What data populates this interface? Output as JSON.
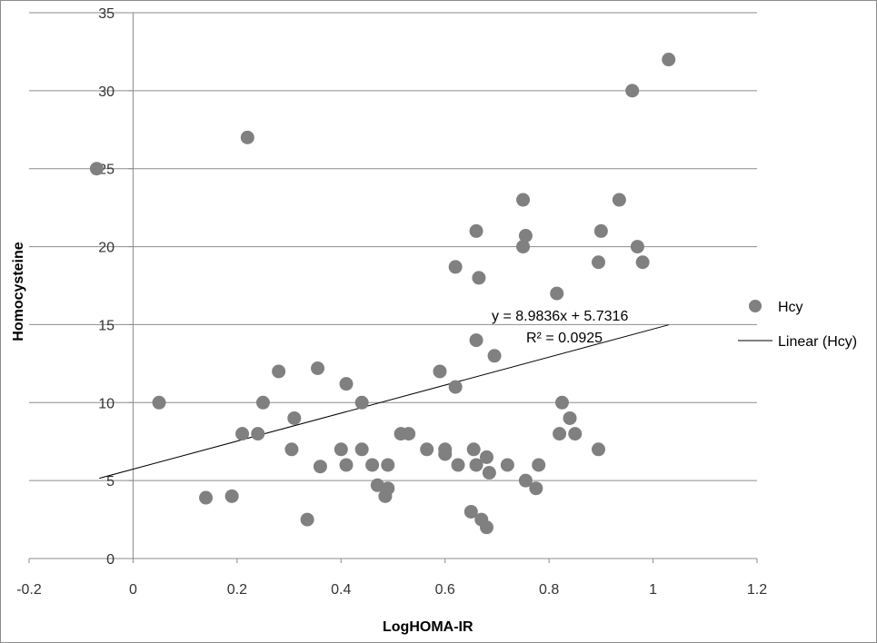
{
  "chart_data": {
    "type": "scatter",
    "xlabel": "LogHOMA-IR",
    "ylabel": "Homocysteine",
    "xlim": [
      -0.2,
      1.2
    ],
    "ylim": [
      0,
      35
    ],
    "xticks": [
      -0.2,
      0,
      0.2,
      0.4,
      0.6,
      0.8,
      1,
      1.2
    ],
    "xtick_labels": [
      "-0.2",
      "0",
      "0.2",
      "0.4",
      "0.6",
      "0.8",
      "1",
      "1.2"
    ],
    "yticks": [
      0,
      5,
      10,
      15,
      20,
      25,
      30,
      35
    ],
    "ytick_labels": [
      "0",
      "5",
      "10",
      "15",
      "20",
      "25",
      "30",
      "35"
    ],
    "grid": "horizontal major gridlines",
    "legend_placement": "right",
    "series": [
      {
        "name": "Hcy",
        "color": "#808080",
        "points": [
          [
            -0.07,
            25
          ],
          [
            0.05,
            10
          ],
          [
            0.14,
            3.9
          ],
          [
            0.19,
            4
          ],
          [
            0.21,
            8
          ],
          [
            0.22,
            27
          ],
          [
            0.24,
            8
          ],
          [
            0.25,
            10
          ],
          [
            0.28,
            12
          ],
          [
            0.305,
            7
          ],
          [
            0.31,
            9
          ],
          [
            0.335,
            2.5
          ],
          [
            0.355,
            12.2
          ],
          [
            0.36,
            5.9
          ],
          [
            0.4,
            7
          ],
          [
            0.41,
            11.2
          ],
          [
            0.41,
            6
          ],
          [
            0.44,
            7
          ],
          [
            0.44,
            10
          ],
          [
            0.46,
            6
          ],
          [
            0.47,
            4.7
          ],
          [
            0.485,
            4
          ],
          [
            0.49,
            4.5
          ],
          [
            0.49,
            6
          ],
          [
            0.515,
            8
          ],
          [
            0.53,
            8
          ],
          [
            0.565,
            7
          ],
          [
            0.59,
            12
          ],
          [
            0.6,
            7
          ],
          [
            0.6,
            6.7
          ],
          [
            0.62,
            18.7
          ],
          [
            0.62,
            11
          ],
          [
            0.625,
            6
          ],
          [
            0.65,
            3
          ],
          [
            0.655,
            7
          ],
          [
            0.66,
            21
          ],
          [
            0.66,
            14
          ],
          [
            0.66,
            6
          ],
          [
            0.665,
            18
          ],
          [
            0.67,
            2.5
          ],
          [
            0.68,
            2
          ],
          [
            0.68,
            6.5
          ],
          [
            0.685,
            5.5
          ],
          [
            0.695,
            13
          ],
          [
            0.72,
            6
          ],
          [
            0.75,
            23
          ],
          [
            0.75,
            20
          ],
          [
            0.755,
            20.7
          ],
          [
            0.755,
            5
          ],
          [
            0.775,
            4.5
          ],
          [
            0.78,
            6
          ],
          [
            0.815,
            17
          ],
          [
            0.82,
            8
          ],
          [
            0.825,
            10
          ],
          [
            0.84,
            9
          ],
          [
            0.85,
            8
          ],
          [
            0.895,
            19
          ],
          [
            0.895,
            7
          ],
          [
            0.9,
            21
          ],
          [
            0.935,
            23
          ],
          [
            0.96,
            30
          ],
          [
            0.97,
            20
          ],
          [
            0.98,
            19
          ],
          [
            1.03,
            32
          ]
        ]
      }
    ],
    "trendline": {
      "name": "Linear (Hcy)",
      "slope": 8.9836,
      "intercept": 5.7316,
      "x_range": [
        -0.065,
        1.03
      ],
      "equation_label": "y = 8.9836x + 5.7316",
      "r2_label": "R² = 0.0925"
    },
    "legend": [
      {
        "label": "Hcy",
        "marker": "circle"
      },
      {
        "label": "Linear (Hcy)",
        "marker": "line"
      }
    ]
  }
}
